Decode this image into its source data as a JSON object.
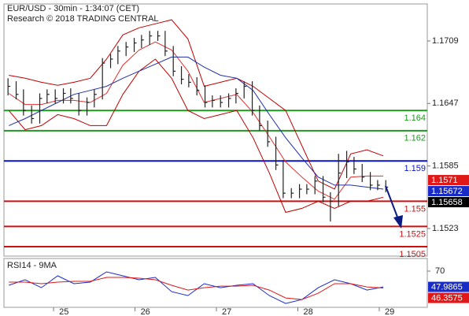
{
  "chart_data": [
    {
      "type": "hlc",
      "title": "EUR/USD - 30min - 1:34:07 (CET)",
      "subtitle": "Research © 2018 TRADING CENTRAL",
      "xlim": [
        24.39,
        29.59
      ],
      "ylim": [
        1.14956,
        1.17457
      ],
      "yticks": [
        1.1523,
        1.1585,
        1.1647,
        1.1709
      ],
      "color": "#222222",
      "x": [
        24.44,
        24.54,
        24.63,
        24.73,
        24.83,
        24.92,
        25.02,
        25.12,
        25.21,
        25.31,
        25.41,
        25.5,
        25.6,
        25.7,
        25.79,
        25.89,
        25.99,
        26.08,
        26.18,
        26.28,
        26.37,
        26.47,
        26.57,
        26.66,
        26.76,
        26.86,
        26.95,
        27.05,
        27.15,
        27.24,
        27.34,
        27.44,
        27.53,
        27.63,
        27.73,
        27.82,
        27.92,
        28.02,
        28.11,
        28.21,
        28.31,
        28.4,
        28.5,
        28.6,
        28.69,
        28.79,
        28.89,
        28.98,
        29.08
      ],
      "high": [
        1.1672,
        1.1669,
        1.1661,
        1.1645,
        1.1657,
        1.1661,
        1.1661,
        1.1662,
        1.1662,
        1.1657,
        1.1653,
        1.1661,
        1.1692,
        1.1696,
        1.1704,
        1.1708,
        1.1712,
        1.1715,
        1.1719,
        1.1719,
        1.1719,
        1.1704,
        1.1684,
        1.1676,
        1.1673,
        1.1665,
        1.1655,
        1.1655,
        1.1657,
        1.1662,
        1.1669,
        1.1669,
        1.1645,
        1.163,
        1.1614,
        1.1591,
        1.1563,
        1.1567,
        1.1567,
        1.1575,
        1.1575,
        1.1559,
        1.1597,
        1.16,
        1.1594,
        1.1587,
        1.1579,
        1.1571,
        1.1571
      ],
      "low": [
        1.1655,
        1.1651,
        1.1635,
        1.1627,
        1.1627,
        1.1647,
        1.1647,
        1.1647,
        1.1647,
        1.1635,
        1.1635,
        1.1643,
        1.1651,
        1.1682,
        1.1686,
        1.1694,
        1.1698,
        1.1702,
        1.1705,
        1.1709,
        1.1694,
        1.1674,
        1.1666,
        1.1663,
        1.1655,
        1.1643,
        1.1643,
        1.1643,
        1.1643,
        1.1647,
        1.1652,
        1.1635,
        1.162,
        1.1604,
        1.1581,
        1.1553,
        1.1553,
        1.1553,
        1.1557,
        1.1557,
        1.1549,
        1.153,
        1.1545,
        1.1573,
        1.1577,
        1.1569,
        1.1561,
        1.1561,
        1.1559
      ],
      "close": [
        1.1664,
        1.1656,
        1.164,
        1.1632,
        1.1652,
        1.1656,
        1.1652,
        1.1657,
        1.1652,
        1.164,
        1.1648,
        1.1656,
        1.1687,
        1.1691,
        1.1699,
        1.1703,
        1.1707,
        1.171,
        1.1714,
        1.1714,
        1.1699,
        1.1679,
        1.1671,
        1.1668,
        1.166,
        1.1648,
        1.165,
        1.1648,
        1.1652,
        1.1657,
        1.1664,
        1.164,
        1.1625,
        1.1609,
        1.1586,
        1.1558,
        1.1558,
        1.1562,
        1.1562,
        1.157,
        1.1554,
        1.155,
        1.1578,
        1.1589,
        1.1582,
        1.1574,
        1.1566,
        1.1566,
        1.1564
      ],
      "overlays": {
        "x": [
          24.45,
          24.65,
          24.85,
          25.05,
          25.25,
          25.45,
          25.65,
          25.85,
          26.05,
          26.25,
          26.45,
          26.65,
          26.85,
          27.05,
          27.25,
          27.45,
          27.65,
          27.85,
          28.05,
          28.25,
          28.45,
          28.65,
          28.85,
          29.05
        ],
        "series": [
          {
            "color": "#c00000",
            "values": [
              1.1675,
              1.1672,
              1.1668,
              1.1665,
              1.1668,
              1.1672,
              1.1691,
              1.1715,
              1.1722,
              1.1726,
              1.173,
              1.1711,
              1.1664,
              1.1668,
              1.1672,
              1.1664,
              1.1652,
              1.164,
              1.1605,
              1.157,
              1.1562,
              1.1597,
              1.1601,
              1.1595
            ]
          },
          {
            "color": "#c00000",
            "values": [
              1.164,
              1.1621,
              1.1625,
              1.1636,
              1.1632,
              1.1625,
              1.1625,
              1.1656,
              1.1679,
              1.1691,
              1.1672,
              1.164,
              1.1632,
              1.1636,
              1.164,
              1.1613,
              1.1578,
              1.1539,
              1.1543,
              1.155,
              1.1543,
              1.155,
              1.155,
              1.1554
            ]
          },
          {
            "color": "#e03030",
            "values": [
              1.1657,
              1.1646,
              1.1646,
              1.165,
              1.165,
              1.1648,
              1.1657,
              1.1685,
              1.17,
              1.1708,
              1.17,
              1.1679,
              1.1648,
              1.1652,
              1.1656,
              1.1638,
              1.1614,
              1.1589,
              1.1574,
              1.156,
              1.1552,
              1.1574,
              1.1575,
              1.1575
            ]
          },
          {
            "color": "#1f2fa8",
            "values": [
              1.1625,
              1.1632,
              1.164,
              1.1648,
              1.1656,
              1.166,
              1.1664,
              1.1672,
              1.1679,
              1.1686,
              1.1693,
              1.1693,
              1.1683,
              1.1675,
              1.1672,
              1.166,
              1.1636,
              1.1613,
              1.1593,
              1.1574,
              1.1566,
              1.1566,
              1.1564,
              1.1562
            ]
          }
        ]
      },
      "levels": [
        {
          "value": 1.164,
          "color": "#1e9a1e"
        },
        {
          "value": 1.162,
          "color": "#1e9a1e"
        },
        {
          "value": 1.159,
          "color": "#0a14c8"
        },
        {
          "value": 1.155,
          "color": "#cc1010"
        },
        {
          "value": 1.1525,
          "color": "#cc1010"
        },
        {
          "value": 1.1505,
          "color": "#cc1010"
        }
      ],
      "price_labels": [
        {
          "value": 1.1571,
          "color": "#e01818"
        },
        {
          "value": 1.15672,
          "color": "#1a2cc8"
        },
        {
          "value": 1.15658,
          "color": "#000000"
        }
      ]
    },
    {
      "type": "line",
      "title": "RSI14 - 9MA",
      "xlim": [
        24.39,
        29.59
      ],
      "xticks": [
        25,
        26,
        27,
        28,
        29
      ],
      "ylim": [
        19.5,
        87.6
      ],
      "yticks": [
        70
      ],
      "x": [
        24.45,
        24.65,
        24.85,
        25.05,
        25.25,
        25.45,
        25.65,
        25.85,
        26.05,
        26.25,
        26.45,
        26.65,
        26.85,
        27.05,
        27.25,
        27.45,
        27.65,
        27.85,
        28.05,
        28.25,
        28.45,
        28.65,
        28.85,
        29.05
      ],
      "series": [
        {
          "color": "#1a2cc8",
          "values": [
            50.2,
            57.9,
            46.9,
            63.4,
            52.4,
            54.6,
            68.9,
            63.4,
            57.9,
            61.2,
            41.4,
            35.9,
            52.4,
            46.9,
            50.2,
            52.4,
            35.9,
            24.9,
            30.4,
            46.9,
            57.9,
            52.4,
            43.6,
            47.9865
          ]
        },
        {
          "color": "#e01818",
          "values": [
            54.6,
            54.6,
            52.4,
            54.6,
            55.7,
            55.7,
            61.2,
            61.2,
            60.1,
            57.9,
            50.2,
            43.6,
            46.9,
            49.1,
            49.1,
            50.2,
            43.6,
            32.6,
            30.4,
            39.2,
            52.4,
            52.4,
            48.0,
            46.3575
          ]
        }
      ]
    }
  ]
}
